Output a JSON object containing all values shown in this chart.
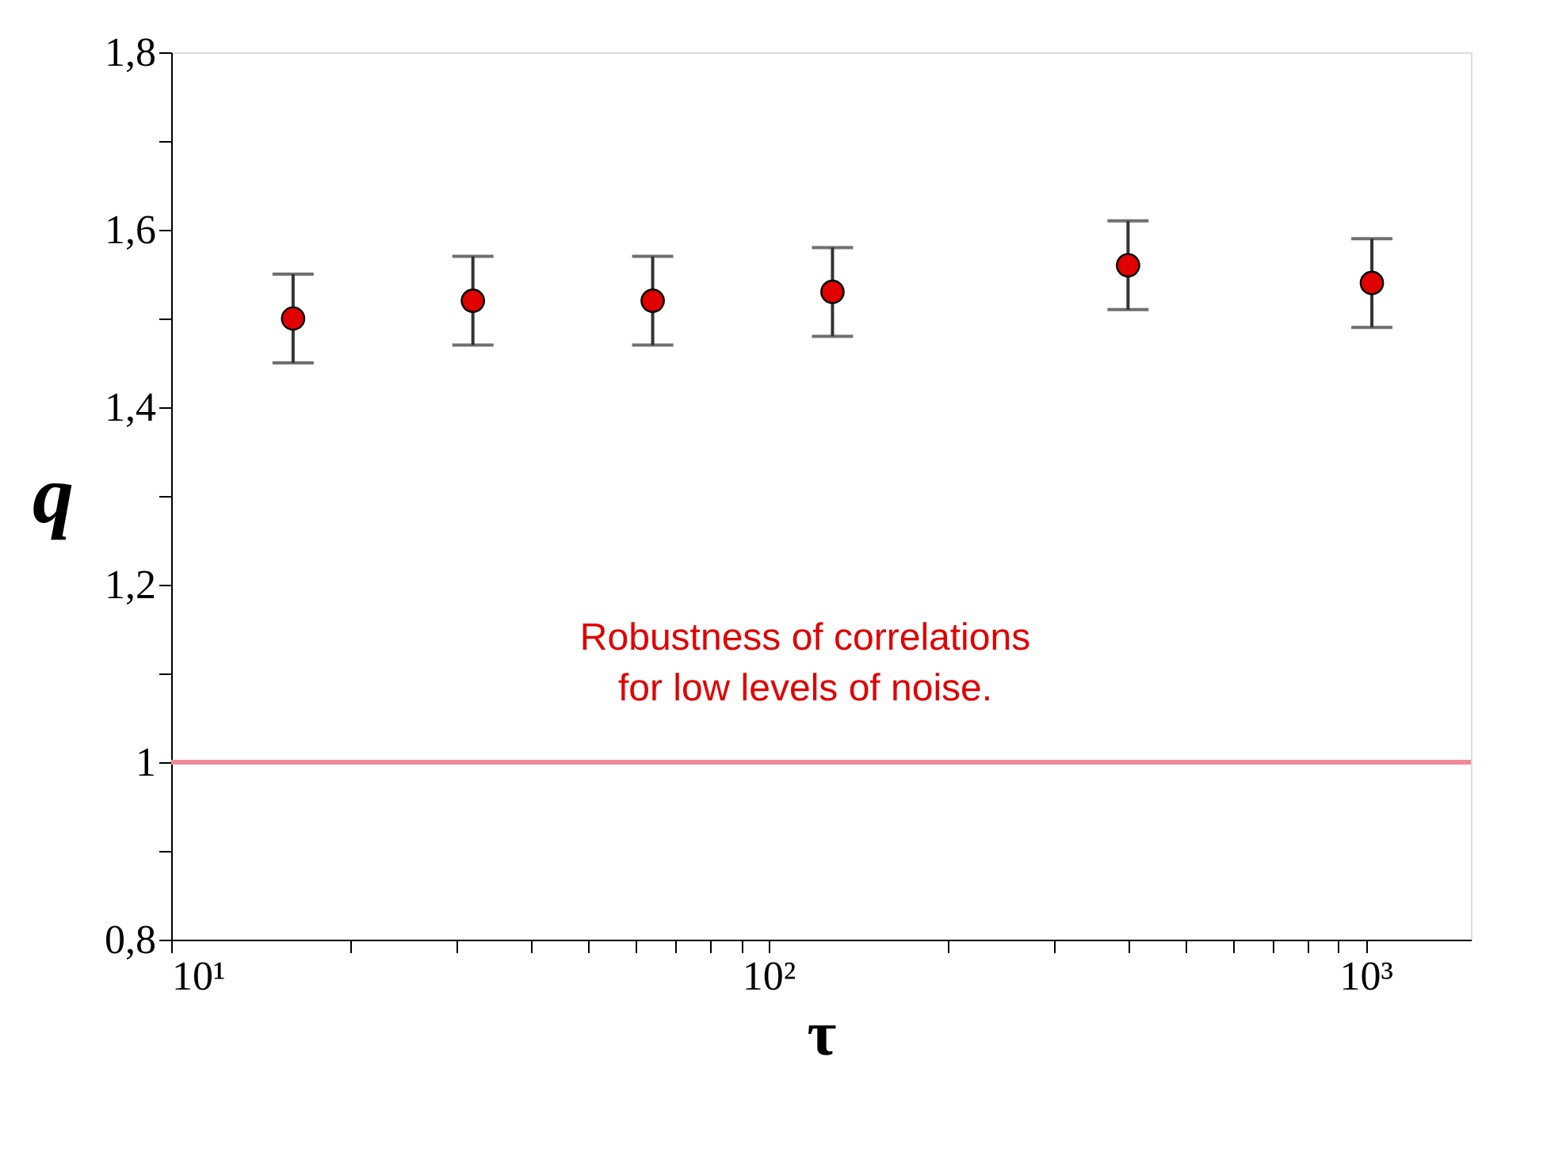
{
  "chart_data": {
    "type": "scatter",
    "x": [
      16,
      32,
      64,
      128,
      400,
      1024
    ],
    "series": [
      {
        "color": "#e00000",
        "values": [
          1.5,
          1.52,
          1.52,
          1.53,
          1.56,
          1.54
        ],
        "errors": [
          0.05,
          0.05,
          0.05,
          0.05,
          0.05,
          0.05
        ]
      }
    ],
    "xlabel": "τ",
    "ylabel": "q",
    "log": "x",
    "xlim": [
      10,
      1500
    ],
    "ylim": [
      0.8,
      1.8
    ],
    "xticks": [
      {
        "value": 10,
        "label": "10¹"
      },
      {
        "value": 20,
        "label": null
      },
      {
        "value": 30,
        "label": null
      },
      {
        "value": 40,
        "label": null
      },
      {
        "value": 50,
        "label": null
      },
      {
        "value": 60,
        "label": null
      },
      {
        "value": 70,
        "label": null
      },
      {
        "value": 80,
        "label": null
      },
      {
        "value": 90,
        "label": null
      },
      {
        "value": 100,
        "label": "10²"
      },
      {
        "value": 200,
        "label": null
      },
      {
        "value": 300,
        "label": null
      },
      {
        "value": 400,
        "label": null
      },
      {
        "value": 500,
        "label": null
      },
      {
        "value": 600,
        "label": null
      },
      {
        "value": 700,
        "label": null
      },
      {
        "value": 800,
        "label": null
      },
      {
        "value": 900,
        "label": null
      },
      {
        "value": 1000,
        "label": "10³"
      }
    ],
    "yticks": [
      {
        "value": 0.8,
        "label": "0,8"
      },
      {
        "value": 0.9,
        "label": null
      },
      {
        "value": 1,
        "label": "1"
      },
      {
        "value": 1.1,
        "label": null
      },
      {
        "value": 1.2,
        "label": "1,2"
      },
      {
        "value": 1.3,
        "label": null
      },
      {
        "value": 1.4,
        "label": "1,4"
      },
      {
        "value": 1.5,
        "label": null
      },
      {
        "value": 1.6,
        "label": "1,6"
      },
      {
        "value": 1.7,
        "label": null
      },
      {
        "value": 1.8,
        "label": "1,8"
      }
    ],
    "ref_lines": [
      {
        "axis": "y",
        "value": 1,
        "color": "#f08a96"
      }
    ],
    "annotations": [
      "Robustness of correlations\nfor low levels of noise."
    ],
    "marker": "circle"
  }
}
